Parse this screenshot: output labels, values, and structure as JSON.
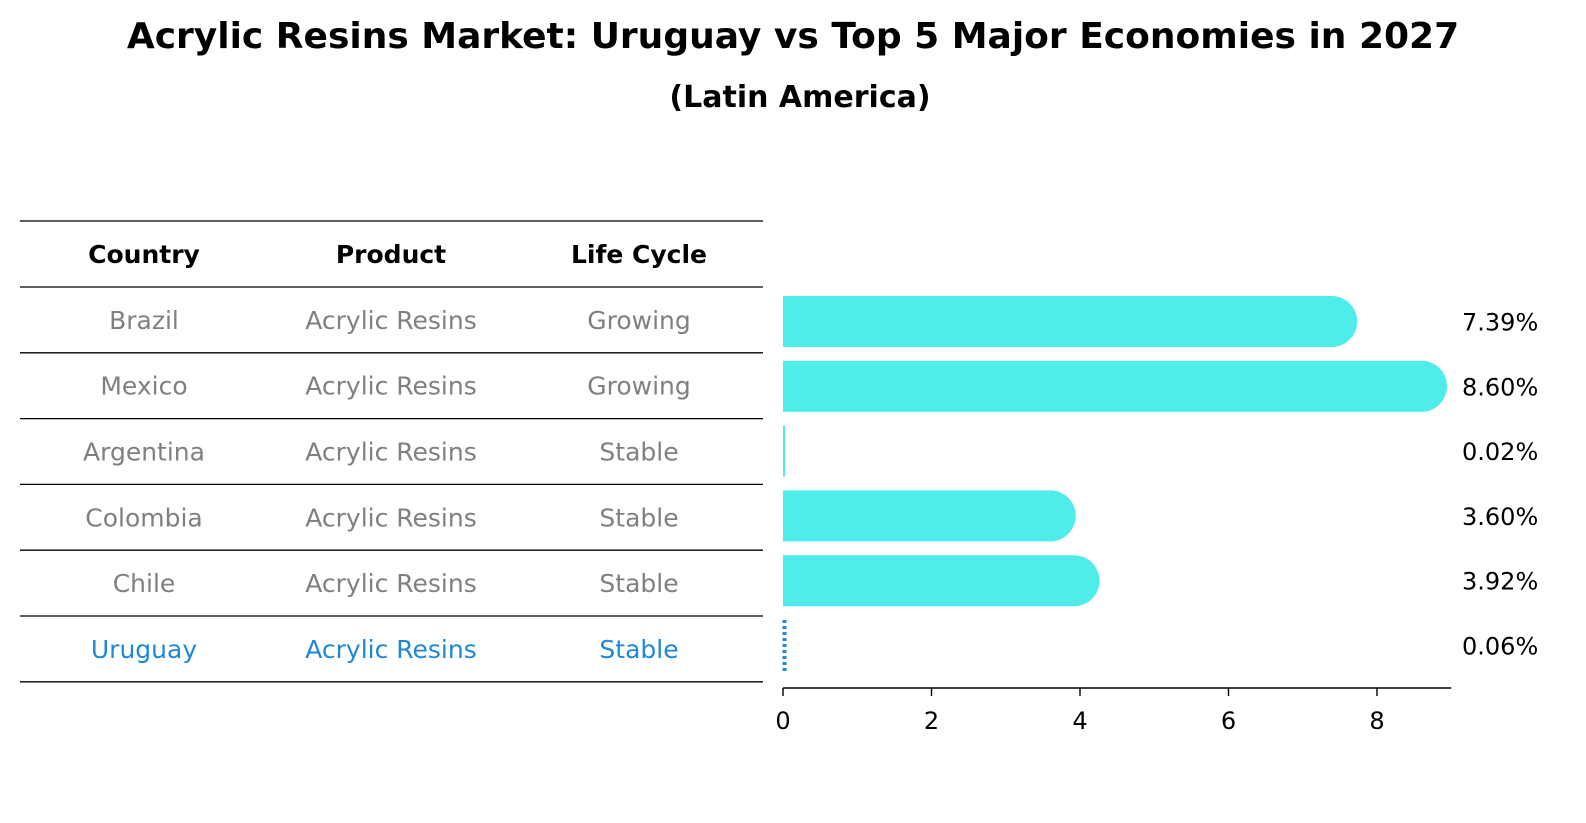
{
  "title": "Acrylic Resins Market: Uruguay vs Top 5 Major Economies in 2027",
  "subtitle": "(Latin America)",
  "colors": {
    "bar": "#4EEDEA",
    "highlight": "#1E88D8",
    "muted_text": "#808080",
    "header_text": "#000000",
    "rule": "#000000"
  },
  "table": {
    "headers": [
      "Country",
      "Product",
      "Life Cycle"
    ],
    "rows": [
      {
        "country": "Brazil",
        "product": "Acrylic Resins",
        "life_cycle": "Growing",
        "highlight": false
      },
      {
        "country": "Mexico",
        "product": "Acrylic Resins",
        "life_cycle": "Growing",
        "highlight": false
      },
      {
        "country": "Argentina",
        "product": "Acrylic Resins",
        "life_cycle": "Stable",
        "highlight": false
      },
      {
        "country": "Colombia",
        "product": "Acrylic Resins",
        "life_cycle": "Stable",
        "highlight": false
      },
      {
        "country": "Chile",
        "product": "Acrylic Resins",
        "life_cycle": "Stable",
        "highlight": false
      },
      {
        "country": "Uruguay",
        "product": "Acrylic Resins",
        "life_cycle": "Stable",
        "highlight": true
      }
    ]
  },
  "chart_data": {
    "type": "bar",
    "orientation": "horizontal",
    "categories": [
      "Brazil",
      "Mexico",
      "Argentina",
      "Colombia",
      "Chile",
      "Uruguay"
    ],
    "values": [
      7.39,
      8.6,
      0.02,
      3.6,
      3.92,
      0.06
    ],
    "value_labels": [
      "7.39%",
      "8.60%",
      "0.02%",
      "3.60%",
      "3.92%",
      "0.06%"
    ],
    "xlim": [
      0,
      9
    ],
    "xticks": [
      0,
      2,
      4,
      6,
      8
    ],
    "xtick_labels": [
      "0",
      "2",
      "4",
      "6",
      "8"
    ],
    "xlabel": "",
    "ylabel": "",
    "grid": false,
    "legend": "none",
    "highlight_category": "Uruguay"
  }
}
